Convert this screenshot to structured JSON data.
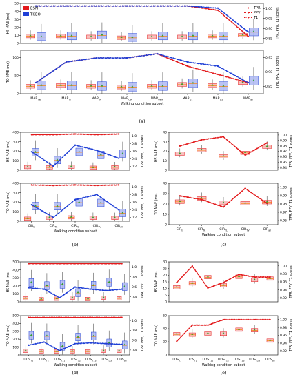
{
  "chart_data": [
    {
      "id": "a",
      "type": "box",
      "caption": "(a)",
      "xlabel": "Walking condition subset",
      "categories": [
        "MAR_TW",
        "MAR_TI",
        "MAR_IW",
        "MAR_OW",
        "MAR_OWR",
        "MAR_D1",
        "MAR_D2",
        "MAR_all"
      ],
      "legend_left": [
        {
          "name": "ESN",
          "color": "#e31a1c"
        },
        {
          "name": "TKEO",
          "color": "#1f3fd6"
        }
      ],
      "legend_right": [
        {
          "name": "TPR",
          "style": "solid"
        },
        {
          "name": "PPV",
          "style": "dashed"
        },
        {
          "name": "T1",
          "style": "dotted"
        }
      ],
      "panels": [
        {
          "ylabel": "HS MAE (ms)",
          "ylim": [
            0,
            50
          ],
          "yticks": [
            0,
            10,
            20,
            30,
            40,
            50
          ],
          "ylabel_right": "TPR, PPV, T1 scores",
          "y2lim": [
            0.85,
            1.0
          ],
          "y2ticks": [
            "0.85",
            "0.90",
            "0.95",
            "1.00"
          ],
          "esn_box_median": [
            9,
            9,
            8,
            7,
            8,
            8,
            9,
            10
          ],
          "tkeo_box_median": [
            8,
            9,
            10,
            7,
            9,
            9,
            9,
            14
          ],
          "esn_score": [
            1.0,
            1.0,
            1.0,
            1.0,
            1.0,
            1.0,
            0.98,
            0.86
          ],
          "tkeo_score": [
            1.0,
            1.0,
            1.0,
            1.0,
            1.0,
            1.0,
            0.99,
            0.88
          ]
        },
        {
          "ylabel": "TO MAE (ms)",
          "ylim": [
            0,
            120
          ],
          "yticks": [
            0,
            50,
            100
          ],
          "ylabel_right": "TPR, PPV, T1 scores",
          "y2lim": [
            0.85,
            1.0
          ],
          "y2ticks": [
            "0.85",
            "0.90",
            "0.95"
          ],
          "esn_box_median": [
            20,
            22,
            20,
            18,
            20,
            25,
            22,
            30
          ],
          "tkeo_box_median": [
            22,
            22,
            20,
            18,
            20,
            28,
            20,
            35
          ],
          "esn_score": [
            0.91,
            0.96,
            0.97,
            0.97,
            0.98,
            0.95,
            0.93,
            0.91
          ],
          "tkeo_score": [
            0.91,
            0.96,
            0.97,
            0.97,
            0.98,
            0.96,
            0.95,
            0.91
          ]
        }
      ]
    },
    {
      "id": "b",
      "type": "box",
      "caption": "(b)",
      "xlabel": "Walking condition subset",
      "categories": [
        "CIR_ls",
        "CIR_TA",
        "CIR_TL",
        "CIR_TV",
        "CIR_all"
      ],
      "panels": [
        {
          "ylabel": "HS MAE (ms)",
          "ylim": [
            0,
            400
          ],
          "yticks": [
            0,
            100,
            200,
            300,
            400
          ],
          "ylabel_right": "TPR, PPV, T1 scores",
          "y2ticks": [
            "0.2",
            "0.4",
            "0.6",
            "0.8",
            "1.0"
          ],
          "esn_score": [
            0.98,
            0.98,
            0.99,
            0.98,
            0.99
          ],
          "tkeo_score": [
            0.72,
            0.5,
            0.82,
            0.74,
            0.62
          ]
        },
        {
          "ylabel": "TO MAE (ms)",
          "ylim": [
            0,
            400
          ],
          "yticks": [
            0,
            100,
            200,
            300,
            400
          ],
          "ylabel_right": "TPR, PPV, T1 scores",
          "y2ticks": [
            "0.2",
            "0.4",
            "0.6",
            "0.8",
            "1.0"
          ],
          "esn_score": [
            0.99,
            0.98,
            0.99,
            0.98,
            0.99
          ],
          "tkeo_score": [
            0.6,
            0.35,
            0.7,
            0.8,
            0.5
          ]
        }
      ]
    },
    {
      "id": "c",
      "type": "box",
      "caption": "(c)",
      "xlabel": "Walking condition subset",
      "categories": [
        "CIR_ls",
        "CIR_TA",
        "CIR_TL",
        "CIR_TV",
        "CIR_all"
      ],
      "panels": [
        {
          "ylabel": "HS MAE (ms)",
          "ylim": [
            0,
            40
          ],
          "yticks": [
            0,
            10,
            20,
            30,
            40
          ],
          "ylabel_right": "TPR, PPV, T1 scores",
          "y2ticks": [
            "0.94",
            "0.95",
            "0.96",
            "0.97",
            "0.98",
            "0.99",
            "1.00"
          ],
          "esn_score": [
            0.97,
            0.98,
            0.985,
            0.955,
            0.975
          ]
        },
        {
          "ylabel": "TO MAE (ms)",
          "ylim": [
            0,
            40
          ],
          "yticks": [
            0,
            10,
            20,
            30,
            40
          ],
          "ylabel_right": "TPR, PPV, T1 scores",
          "y2ticks": [
            "0.96",
            "0.97",
            "0.98",
            "0.99",
            "1.00"
          ],
          "esn_score": [
            0.985,
            0.98,
            0.97,
            0.995,
            0.975
          ]
        }
      ]
    },
    {
      "id": "d",
      "type": "box",
      "caption": "(d)",
      "xlabel": "Walking condition subset",
      "categories": [
        "UDS_T1",
        "UDS_T2",
        "UDS_T11",
        "UDS_T12",
        "UDS_T13",
        "UDS_T23",
        "UDS_all"
      ],
      "panels": [
        {
          "ylabel": "HS MAE (ms)",
          "ylim": [
            0,
            500
          ],
          "yticks": [
            0,
            100,
            200,
            300,
            400,
            500
          ],
          "ylabel_right": "TPR, PPV, T1 scores",
          "y2ticks": [
            "0.4",
            "0.6",
            "0.8",
            "1.0"
          ],
          "esn_score": [
            0.98,
            0.98,
            0.98,
            0.98,
            0.98,
            0.98,
            0.98
          ],
          "tkeo_score": [
            0.64,
            0.62,
            0.5,
            0.65,
            0.62,
            0.6,
            0.62
          ]
        },
        {
          "ylabel": "TO MAE (ms)",
          "ylim": [
            0,
            500
          ],
          "yticks": [
            0,
            100,
            200,
            300,
            400,
            500
          ],
          "ylabel_right": "TPR, PPV, T1 scores",
          "y2ticks": [
            "0.4",
            "0.6",
            "0.8",
            "1.0"
          ],
          "esn_score": [
            0.98,
            0.98,
            0.98,
            0.98,
            0.98,
            0.98,
            0.98
          ],
          "tkeo_score": [
            0.62,
            0.66,
            0.55,
            0.64,
            0.65,
            0.64,
            0.63
          ]
        }
      ]
    },
    {
      "id": "e",
      "type": "box",
      "caption": "(e)",
      "xlabel": "Walking condition subset",
      "categories": [
        "UDS_T1",
        "UDS_T2",
        "UDS_T11",
        "UDS_T12",
        "UDS_T13",
        "UDS_T23",
        "UDS_all"
      ],
      "panels": [
        {
          "ylabel": "HS MAE (ms)",
          "ylim": [
            0,
            30
          ],
          "yticks": [
            0,
            5,
            10,
            15,
            20,
            25,
            30
          ],
          "ylabel_right": "TPR, PPV, T1 scores",
          "y2ticks": [
            "0.92",
            "0.94",
            "0.96",
            "0.98",
            "1.00"
          ],
          "esn_score": [
            0.96,
            0.99,
            0.95,
            0.96,
            0.975,
            0.97,
            0.97
          ]
        },
        {
          "ylabel": "TO MAE (ms)",
          "ylim": [
            0,
            60
          ],
          "yticks": [
            0,
            20,
            40,
            60
          ],
          "ylabel_right": "TPR, PPV, T1 scores",
          "y2ticks": [
            "0.92",
            "0.94",
            "0.96",
            "0.98",
            "1.00"
          ],
          "esn_score": [
            0.93,
            0.96,
            0.96,
            0.97,
            0.97,
            0.97,
            0.97
          ]
        }
      ]
    }
  ]
}
